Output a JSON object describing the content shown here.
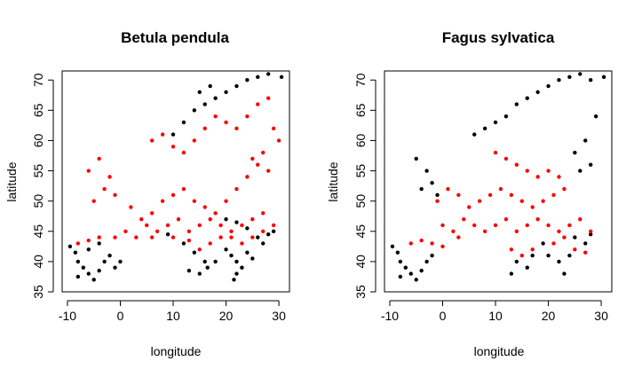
{
  "colors": {
    "absent": "#000000",
    "present": "#ff0000"
  },
  "chart_data": [
    {
      "type": "scatter",
      "title": "Betula pendula",
      "xlabel": "longitude",
      "ylabel": "latitude",
      "xlim": [
        -11,
        32
      ],
      "ylim": [
        35,
        71.5
      ],
      "xticks": [
        -10,
        0,
        10,
        20,
        30
      ],
      "yticks": [
        35,
        40,
        45,
        50,
        55,
        60,
        65,
        70
      ],
      "grid": false,
      "series": [
        {
          "color": "#000000",
          "values": [
            [
              -9.5,
              42.5
            ],
            [
              -8.5,
              41.5
            ],
            [
              -8,
              40
            ],
            [
              -7,
              39
            ],
            [
              -6,
              38
            ],
            [
              -5,
              37
            ],
            [
              -4,
              38.5
            ],
            [
              -3,
              40
            ],
            [
              -2,
              41
            ],
            [
              -1,
              39
            ],
            [
              0,
              40
            ],
            [
              -6,
              42
            ],
            [
              -4,
              43
            ],
            [
              -8,
              37.5
            ],
            [
              9,
              44.5
            ],
            [
              12,
              43
            ],
            [
              14,
              41.5
            ],
            [
              16,
              40
            ],
            [
              16.5,
              39
            ],
            [
              18,
              40
            ],
            [
              15,
              38
            ],
            [
              13,
              38.5
            ],
            [
              20,
              42
            ],
            [
              21,
              41
            ],
            [
              22,
              40
            ],
            [
              23,
              39
            ],
            [
              22,
              38
            ],
            [
              24,
              41.5
            ],
            [
              25,
              40.5
            ],
            [
              21.5,
              37
            ],
            [
              26,
              44
            ],
            [
              27,
              43
            ],
            [
              28,
              44.5
            ],
            [
              29,
              45
            ],
            [
              24,
              45.5
            ],
            [
              22,
              46.5
            ],
            [
              20,
              47
            ],
            [
              10,
              61
            ],
            [
              12,
              63
            ],
            [
              14,
              65
            ],
            [
              16,
              66
            ],
            [
              18,
              67
            ],
            [
              20,
              68
            ],
            [
              22,
              69
            ],
            [
              24,
              70
            ],
            [
              26,
              70.5
            ],
            [
              28,
              71
            ],
            [
              30.5,
              70.5
            ],
            [
              15,
              68
            ],
            [
              17,
              69
            ]
          ]
        },
        {
          "color": "#ff0000",
          "values": [
            [
              -5,
              50
            ],
            [
              -3,
              52
            ],
            [
              -2,
              54
            ],
            [
              -4,
              57
            ],
            [
              -6,
              55
            ],
            [
              -1,
              51
            ],
            [
              2,
              49
            ],
            [
              4,
              47
            ],
            [
              6,
              48
            ],
            [
              8,
              50
            ],
            [
              10,
              51
            ],
            [
              12,
              52
            ],
            [
              14,
              50
            ],
            [
              16,
              49
            ],
            [
              18,
              48
            ],
            [
              20,
              50
            ],
            [
              22,
              52
            ],
            [
              24,
              54
            ],
            [
              26,
              56
            ],
            [
              28,
              55
            ],
            [
              5,
              46
            ],
            [
              7,
              45
            ],
            [
              9,
              46
            ],
            [
              11,
              47
            ],
            [
              13,
              45
            ],
            [
              15,
              46
            ],
            [
              17,
              47
            ],
            [
              19,
              46
            ],
            [
              21,
              45
            ],
            [
              23,
              46
            ],
            [
              25,
              47
            ],
            [
              27,
              48
            ],
            [
              -8,
              43
            ],
            [
              -6,
              43.5
            ],
            [
              -4,
              44
            ],
            [
              -1,
              44
            ],
            [
              1,
              45
            ],
            [
              3,
              44
            ],
            [
              6,
              44
            ],
            [
              10,
              44
            ],
            [
              6,
              60
            ],
            [
              8,
              61
            ],
            [
              10,
              59
            ],
            [
              12,
              58
            ],
            [
              14,
              60
            ],
            [
              16,
              62
            ],
            [
              18,
              64
            ],
            [
              20,
              63
            ],
            [
              22,
              62
            ],
            [
              24,
              64
            ],
            [
              26,
              66
            ],
            [
              28,
              67
            ],
            [
              29,
              62
            ],
            [
              30,
              60
            ],
            [
              27,
              58
            ],
            [
              25,
              57
            ],
            [
              13,
              43.5
            ],
            [
              15,
              42
            ],
            [
              17,
              43
            ],
            [
              19,
              44
            ],
            [
              21,
              44
            ],
            [
              23,
              43
            ],
            [
              25,
              44
            ],
            [
              27,
              45
            ],
            [
              29,
              46
            ]
          ]
        }
      ]
    },
    {
      "type": "scatter",
      "title": "Fagus sylvatica",
      "xlabel": "longitude",
      "ylabel": "latitude",
      "xlim": [
        -11,
        32
      ],
      "ylim": [
        35,
        71.5
      ],
      "xticks": [
        -10,
        0,
        10,
        20,
        30
      ],
      "yticks": [
        35,
        40,
        45,
        50,
        55,
        60,
        65,
        70
      ],
      "grid": false,
      "series": [
        {
          "color": "#000000",
          "values": [
            [
              -9.5,
              42.5
            ],
            [
              -8.5,
              41.5
            ],
            [
              -8,
              40
            ],
            [
              -7,
              39
            ],
            [
              -6,
              38
            ],
            [
              -5,
              37
            ],
            [
              -4,
              38.5
            ],
            [
              -3,
              40
            ],
            [
              -2,
              41
            ],
            [
              -8,
              37.5
            ],
            [
              -5,
              57
            ],
            [
              -3,
              55
            ],
            [
              -2,
              53
            ],
            [
              -4,
              52
            ],
            [
              -1,
              51
            ],
            [
              6,
              61
            ],
            [
              8,
              62
            ],
            [
              10,
              63
            ],
            [
              12,
              64
            ],
            [
              14,
              66
            ],
            [
              16,
              67
            ],
            [
              18,
              68
            ],
            [
              20,
              69
            ],
            [
              22,
              70
            ],
            [
              24,
              70.5
            ],
            [
              26,
              71
            ],
            [
              28,
              70
            ],
            [
              30.5,
              70.5
            ],
            [
              29,
              64
            ],
            [
              27,
              60
            ],
            [
              25,
              58
            ],
            [
              28,
              56
            ],
            [
              26,
              55
            ],
            [
              19,
              43
            ],
            [
              20,
              41
            ],
            [
              22,
              40
            ],
            [
              23,
              38
            ],
            [
              24,
              41
            ],
            [
              25,
              44
            ],
            [
              27,
              43
            ],
            [
              28,
              44.5
            ],
            [
              14,
              40
            ],
            [
              16,
              39
            ],
            [
              17,
              41
            ],
            [
              13,
              38
            ]
          ]
        },
        {
          "color": "#ff0000",
          "values": [
            [
              -1,
              50
            ],
            [
              1,
              52
            ],
            [
              3,
              51
            ],
            [
              5,
              49
            ],
            [
              7,
              50
            ],
            [
              9,
              51
            ],
            [
              11,
              52
            ],
            [
              13,
              51
            ],
            [
              15,
              50
            ],
            [
              17,
              49
            ],
            [
              19,
              50
            ],
            [
              21,
              51
            ],
            [
              23,
              52
            ],
            [
              0,
              46
            ],
            [
              2,
              45
            ],
            [
              4,
              47
            ],
            [
              6,
              46
            ],
            [
              8,
              45
            ],
            [
              10,
              46
            ],
            [
              12,
              47
            ],
            [
              14,
              45
            ],
            [
              16,
              46
            ],
            [
              18,
              47
            ],
            [
              20,
              46
            ],
            [
              22,
              45
            ],
            [
              24,
              46
            ],
            [
              26,
              47
            ],
            [
              28,
              45
            ],
            [
              -6,
              43
            ],
            [
              -4,
              43.5
            ],
            [
              -2,
              43
            ],
            [
              0,
              42.5
            ],
            [
              3,
              44
            ],
            [
              10,
              58
            ],
            [
              12,
              57
            ],
            [
              14,
              56
            ],
            [
              16,
              55
            ],
            [
              18,
              54
            ],
            [
              20,
              55
            ],
            [
              22,
              54
            ],
            [
              13,
              42
            ],
            [
              15,
              41
            ],
            [
              17,
              42
            ],
            [
              21,
              43
            ],
            [
              23,
              44
            ],
            [
              25,
              42
            ],
            [
              27,
              41.5
            ]
          ]
        }
      ]
    }
  ]
}
